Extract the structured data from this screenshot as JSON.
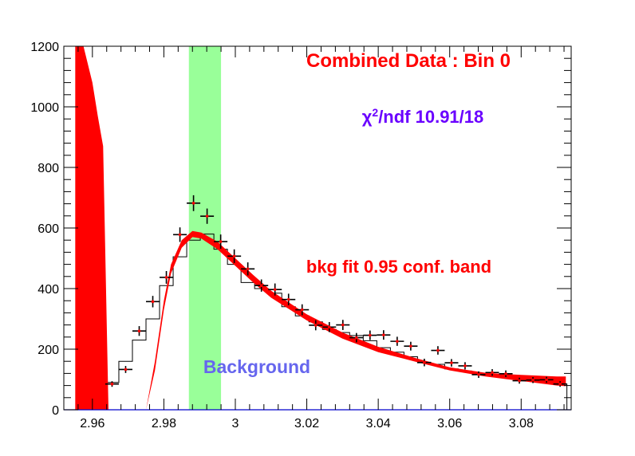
{
  "chart_data": {
    "type": "scatter",
    "title": "Combined Data : Bin 0",
    "chi2_label": {
      "symbol": "χ",
      "sup": "2",
      "text": "/ndf 10.91/18"
    },
    "band_label": "bkg fit 0.95 conf. band",
    "region_label": "Background",
    "xlim": [
      2.952,
      3.094
    ],
    "ylim": [
      0,
      1200
    ],
    "x_ticks": [
      2.96,
      2.98,
      3,
      3.02,
      3.04,
      3.06,
      3.08
    ],
    "x_tick_labels": [
      "2.96",
      "2.98",
      "3",
      "3.02",
      "3.04",
      "3.06",
      "3.08"
    ],
    "y_ticks": [
      0,
      200,
      400,
      600,
      800,
      1000,
      1200
    ],
    "y_tick_labels": [
      "0",
      "200",
      "400",
      "600",
      "800",
      "1000",
      "1200"
    ],
    "signal_region": [
      2.987,
      2.996
    ],
    "colors": {
      "band": "#ff0000",
      "signal_region": "#99ff99",
      "title": "#ff0000",
      "chi2": "#6a00ff",
      "region_label": "#6666ee",
      "band_label": "#ff0000",
      "marker": "#ff0000",
      "errorbar": "#000000"
    },
    "data_points": {
      "x": [
        2.9655,
        2.9693,
        2.9731,
        2.9769,
        2.9807,
        2.9845,
        2.9883,
        2.9921,
        2.9959,
        2.9997,
        3.0035,
        3.0073,
        3.0111,
        3.0149,
        3.0187,
        3.0225,
        3.0263,
        3.0301,
        3.0339,
        3.0377,
        3.0415,
        3.0453,
        3.0491,
        3.0529,
        3.0567,
        3.0605,
        3.0643,
        3.0681,
        3.0719,
        3.0757,
        3.0795,
        3.0833,
        3.0871,
        3.0909
      ],
      "y": [
        85,
        133,
        260,
        357,
        437,
        578,
        682,
        639,
        555,
        507,
        465,
        410,
        397,
        364,
        330,
        279,
        273,
        280,
        238,
        246,
        247,
        226,
        210,
        156,
        196,
        155,
        145,
        116,
        123,
        119,
        96,
        98,
        99,
        85
      ]
    },
    "histogram": {
      "edges": [
        2.9636,
        2.9674,
        2.9712,
        2.975,
        2.9788,
        2.9826,
        2.9864,
        2.9902,
        2.994,
        2.9978,
        3.0016,
        3.0054,
        3.0092,
        3.013,
        3.0168,
        3.0206,
        3.0244,
        3.0282,
        3.032,
        3.0358,
        3.0396,
        3.0434,
        3.0472,
        3.051,
        3.0548,
        3.0586,
        3.0624,
        3.0662,
        3.07,
        3.0738,
        3.0776,
        3.0814,
        3.0852,
        3.089,
        3.0928
      ],
      "values": [
        90,
        160,
        230,
        300,
        410,
        505,
        560,
        580,
        530,
        480,
        420,
        400,
        385,
        340,
        310,
        290,
        265,
        255,
        245,
        228,
        205,
        190,
        175,
        155,
        150,
        135,
        128,
        120,
        113,
        108,
        102,
        96,
        92,
        85
      ]
    },
    "band": {
      "x": [
        2.9552,
        2.9575,
        2.96,
        2.9615,
        2.963,
        2.9645,
        2.975,
        2.9775,
        2.98,
        2.982,
        2.985,
        2.988,
        2.9905,
        2.995,
        3.0,
        3.005,
        3.01,
        3.02,
        3.03,
        3.04,
        3.05,
        3.06,
        3.07,
        3.08,
        3.09,
        3.0925
      ],
      "lower": [
        0,
        0,
        0,
        0,
        0,
        0,
        0,
        130,
        330,
        450,
        535,
        570,
        565,
        530,
        475,
        420,
        370,
        295,
        235,
        190,
        160,
        130,
        110,
        95,
        80,
        78
      ],
      "upper": [
        1200,
        1200,
        1080,
        970,
        870,
        0,
        0,
        160,
        360,
        480,
        560,
        590,
        585,
        555,
        500,
        445,
        393,
        315,
        255,
        208,
        172,
        140,
        122,
        115,
        110,
        110
      ]
    }
  }
}
